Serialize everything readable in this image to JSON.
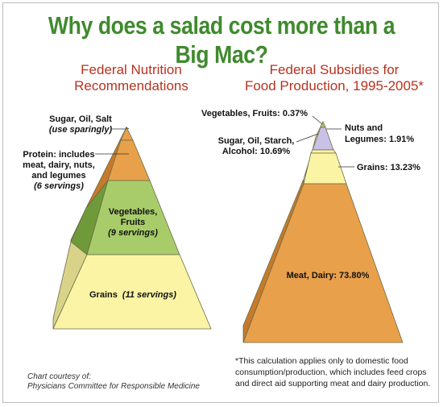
{
  "title": "Why does a salad cost more than a Big Mac?",
  "left_pyramid": {
    "title_line1": "Federal Nutrition",
    "title_line2": "Recommendations",
    "tiers": [
      {
        "label_line1": "Sugar, Oil, Salt",
        "label_line2": "(use sparingly)",
        "color": "#e8a04a"
      },
      {
        "label_line1": "Protein: includes",
        "label_line2": "meat, dairy, nuts,",
        "label_line3": "and legumes",
        "label_line4": "(6 servings)",
        "color": "#e8a04a"
      },
      {
        "label_line1": "Vegetables,",
        "label_line2": "Fruits",
        "label_line3": "(9 servings)",
        "color": "#a8cc6a"
      },
      {
        "label_line1": "Grains",
        "label_line2": "(11 servings)",
        "color": "#fbf4a4"
      }
    ]
  },
  "right_pyramid": {
    "title_line1": "Federal Subsidies for",
    "title_line2": "Food Production, 1995-2005*",
    "tiers": [
      {
        "label": "Vegetables, Fruits: 0.37%",
        "value": 0.37,
        "color": "#a8cc6a"
      },
      {
        "label_line1": "Nuts and",
        "label_line2": "Legumes: 1.91%",
        "value": 1.91,
        "color": "#c9c1e6"
      },
      {
        "label_line1": "Sugar, Oil, Starch,",
        "label_line2": "Alcohol: 10.69%",
        "value": 10.69,
        "color": "#fbf4a4"
      },
      {
        "label": "Grains: 13.23%",
        "value": 13.23,
        "color": "#fbf4a4"
      },
      {
        "label": "Meat, Dairy: 73.80%",
        "value": 73.8,
        "color": "#e8a04a"
      }
    ]
  },
  "credit_line1": "Chart courtesy of:",
  "credit_line2": "Physicians Committee for Responsible Medicine",
  "footnote": "*This calculation applies only to domestic food consumption/production, which includes feed crops and direct aid supporting meat and dairy production."
}
